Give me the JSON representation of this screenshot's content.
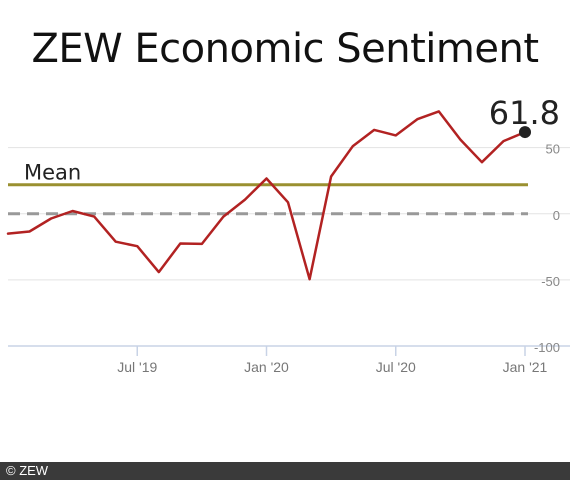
{
  "title": "ZEW Economic Sentiment",
  "footer": {
    "copyright": "© ZEW"
  },
  "chart_data": {
    "type": "line",
    "title": "ZEW Economic Sentiment",
    "xlabel": "",
    "ylabel": "",
    "ylim": [
      -100,
      80
    ],
    "grid": true,
    "y_ticks": [
      50,
      0,
      -50,
      -100
    ],
    "y_tick_labels": [
      "50",
      "0",
      "-50",
      "-100"
    ],
    "x_ticks": [
      "2019-07",
      "2020-01",
      "2020-07",
      "2021-01"
    ],
    "x_tick_labels": [
      "Jul '19",
      "Jan '20",
      "Jul '20",
      "Jan '21"
    ],
    "mean": {
      "label": "Mean",
      "value": 22,
      "color": "#9a9030"
    },
    "zero_line": {
      "value": 0,
      "color": "#999999",
      "style": "dashed"
    },
    "last_value_label": "61.8",
    "series": [
      {
        "color": "#b22222",
        "x": [
          "2019-01",
          "2019-02",
          "2019-03",
          "2019-04",
          "2019-05",
          "2019-06",
          "2019-07",
          "2019-08",
          "2019-09",
          "2019-10",
          "2019-11",
          "2019-12",
          "2020-01",
          "2020-02",
          "2020-03",
          "2020-04",
          "2020-05",
          "2020-06",
          "2020-07",
          "2020-08",
          "2020-09",
          "2020-10",
          "2020-11",
          "2020-12",
          "2021-01"
        ],
        "values": [
          -15,
          -13.4,
          -3.6,
          2.1,
          -2.1,
          -21.1,
          -24.5,
          -44.1,
          -22.5,
          -22.8,
          -2.1,
          10.7,
          26.7,
          8.7,
          -49.5,
          28.2,
          51.0,
          63.4,
          59.3,
          71.5,
          77.4,
          56.1,
          39.0,
          55.0,
          61.8
        ]
      }
    ]
  }
}
